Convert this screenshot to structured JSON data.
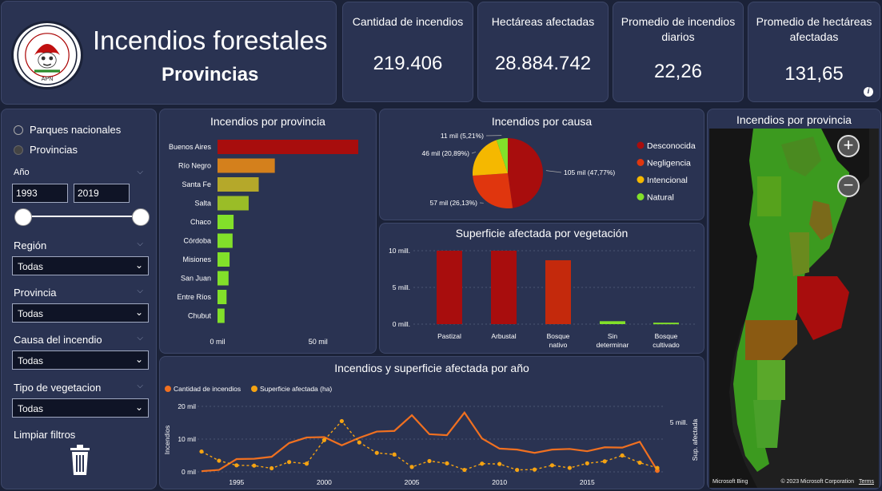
{
  "header": {
    "logo_text": "CONSEJO NACIONAL DE LUCHA CONTRA INCENDIOS FORESTALES",
    "logo_abbr": "APN",
    "title": "Incendios forestales",
    "subtitle": "Provincias"
  },
  "kpis": [
    {
      "label": "Cantidad de incendios",
      "value": "219.406"
    },
    {
      "label": "Hectáreas afectadas",
      "value": "28.884.742"
    },
    {
      "label": "Promedio de incendios diarios",
      "value": "22,26"
    },
    {
      "label": "Promedio de hectáreas afectadas",
      "value": "131,65"
    }
  ],
  "filters": {
    "radio_options": [
      "Parques nacionales",
      "Provincias"
    ],
    "selected_radio": "Provincias",
    "year_label": "Año",
    "year_from": "1993",
    "year_to": "2019",
    "dropdowns": [
      {
        "label": "Región",
        "value": "Todas"
      },
      {
        "label": "Provincia",
        "value": "Todas"
      },
      {
        "label": "Causa del incendio",
        "value": "Todas"
      },
      {
        "label": "Tipo de vegetacion",
        "value": "Todas"
      }
    ],
    "clear_label": "Limpiar filtros"
  },
  "map": {
    "title": "Incendios por provincia",
    "attribution_left": "Microsoft Bing",
    "attribution_right": "© 2023 Microsoft Corporation",
    "terms": "Terms"
  },
  "charts": [
    {
      "type": "bar",
      "orientation": "horizontal",
      "title": "Incendios por provincia",
      "categories": [
        "Buenos Aires",
        "Río Negro",
        "Santa Fe",
        "Salta",
        "Chaco",
        "Córdoba",
        "Misiones",
        "San Juan",
        "Entre Ríos",
        "Chubut"
      ],
      "values": [
        70000,
        28500,
        20500,
        15500,
        8000,
        7500,
        6000,
        5500,
        4500,
        3500
      ],
      "colors": [
        "#a80d0d",
        "#d4801c",
        "#b5a82a",
        "#9abd27",
        "#82e02a",
        "#82e02a",
        "#82e02a",
        "#82e02a",
        "#82e02a",
        "#82e02a"
      ],
      "xticks": [
        0,
        50000
      ],
      "xtick_labels": [
        "0 mil",
        "50 mil"
      ],
      "xlim": [
        0,
        70000
      ]
    },
    {
      "type": "pie",
      "title": "Incendios por causa",
      "slices": [
        {
          "name": "Desconocida",
          "value": 47.77,
          "label": "105 mil (47,77%)",
          "color": "#a80d0d"
        },
        {
          "name": "Negligencia",
          "value": 26.13,
          "label": "57 mil (26,13%)",
          "color": "#e0360e"
        },
        {
          "name": "Intencional",
          "value": 20.89,
          "label": "46 mil (20,89%)",
          "color": "#f5b800"
        },
        {
          "name": "Natural",
          "value": 5.21,
          "label": "11 mil (5,21%)",
          "color": "#82e02a"
        }
      ],
      "legend": "right"
    },
    {
      "type": "bar",
      "orientation": "vertical",
      "title": "Superficie afectada por vegetación",
      "categories": [
        "Pastizal",
        "Arbustal",
        "Bosque nativo",
        "Sin determinar",
        "Bosque cultivado"
      ],
      "values": [
        10000000,
        10000000,
        8700000,
        400000,
        200000
      ],
      "colors": [
        "#a80d0d",
        "#a80d0d",
        "#c4290c",
        "#82e02a",
        "#82e02a"
      ],
      "yticks": [
        0,
        5000000,
        10000000
      ],
      "ytick_labels": [
        "0 mill.",
        "5 mill.",
        "10 mill."
      ],
      "ylim": [
        0,
        10000000
      ]
    },
    {
      "type": "line",
      "title": "Incendios y superficie afectada por año",
      "ylabel_left": "Incendios",
      "ylabel_right": "Sup. afectada",
      "x": [
        1993,
        1994,
        1995,
        1996,
        1997,
        1998,
        1999,
        2000,
        2001,
        2002,
        2003,
        2004,
        2005,
        2006,
        2007,
        2008,
        2009,
        2010,
        2011,
        2012,
        2013,
        2014,
        2015,
        2016,
        2017,
        2018,
        2019
      ],
      "xticks": [
        1995,
        2000,
        2005,
        2010,
        2015
      ],
      "xtick_labels": [
        "1995",
        "2000",
        "2005",
        "2010",
        "2015"
      ],
      "yticks_left": [
        0,
        10000,
        20000
      ],
      "ytick_labels_left": [
        "0 mil",
        "10 mil",
        "20 mil"
      ],
      "yticks_right": [
        5000000
      ],
      "ytick_labels_right": [
        "5 mill."
      ],
      "ylim_left": [
        0,
        20000
      ],
      "ylim_right": [
        0,
        6600000
      ],
      "series": [
        {
          "name": "Cantidad de incendios",
          "axis": "left",
          "color": "#f07020",
          "style": "solid",
          "values": [
            200,
            600,
            3900,
            4000,
            4600,
            8800,
            10500,
            10600,
            8100,
            10400,
            12300,
            12500,
            17300,
            11500,
            11200,
            18100,
            10200,
            7100,
            6800,
            5800,
            6800,
            7000,
            6300,
            7500,
            7400,
            9200,
            400
          ]
        },
        {
          "name": "Superficie afectada (ha)",
          "axis": "left",
          "color": "#f5a312",
          "style": "dashed",
          "values": [
            6200,
            3400,
            2000,
            1900,
            1100,
            3000,
            2500,
            9700,
            15500,
            9000,
            5800,
            5300,
            1500,
            3300,
            2600,
            600,
            2500,
            2400,
            600,
            700,
            2000,
            1200,
            2600,
            3200,
            5000,
            2800,
            1200
          ]
        }
      ],
      "legend": "top-left"
    }
  ]
}
